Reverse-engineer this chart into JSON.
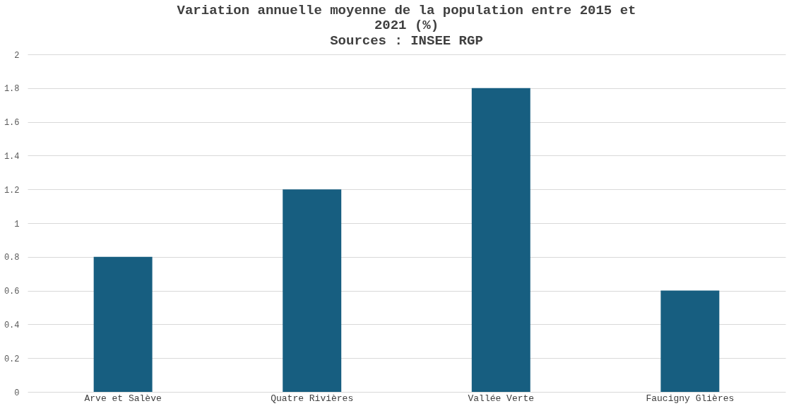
{
  "chart_data": {
    "type": "bar",
    "title": "Variation annuelle moyenne de la population entre 2015 et 2021  (%)",
    "subtitle": "Sources : INSEE RGP",
    "categories": [
      "Arve et Salève",
      "Quatre Rivières",
      "Vallée Verte",
      "Faucigny Glières"
    ],
    "values": [
      0.8,
      1.2,
      1.8,
      0.6
    ],
    "color": "#175e80",
    "ylim": [
      0,
      2
    ],
    "yticks": [
      0,
      0.2,
      0.4,
      0.6,
      0.8,
      1,
      1.2,
      1.4,
      1.6,
      1.8,
      2
    ],
    "grid": "y"
  }
}
